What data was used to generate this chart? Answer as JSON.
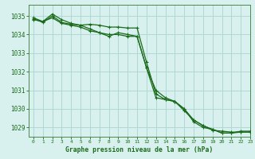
{
  "background_color": "#d8f0ee",
  "grid_color": "#b0d8d4",
  "line_color": "#1a6b1a",
  "marker_color": "#1a6b1a",
  "xlabel": "Graphe pression niveau de la mer (hPa)",
  "xlabel_color": "#1a6b1a",
  "tick_color": "#1a6b1a",
  "spine_color": "#4a8a4a",
  "ylim": [
    1028.5,
    1035.6
  ],
  "xlim": [
    -0.5,
    23
  ],
  "yticks": [
    1029,
    1030,
    1031,
    1032,
    1033,
    1034,
    1035
  ],
  "xticks": [
    0,
    1,
    2,
    3,
    4,
    5,
    6,
    7,
    8,
    9,
    10,
    11,
    12,
    13,
    14,
    15,
    16,
    17,
    18,
    19,
    20,
    21,
    22,
    23
  ],
  "series1": [
    1034.8,
    1034.7,
    1035.1,
    1034.8,
    1034.6,
    1034.5,
    1034.3,
    1034.1,
    1033.9,
    1034.1,
    1034.0,
    1033.9,
    1032.2,
    1030.6,
    1030.5,
    1030.4,
    1030.0,
    1029.3,
    1029.0,
    1028.9,
    1028.7,
    1028.7,
    1028.8,
    1028.8
  ],
  "series2": [
    1034.9,
    1034.7,
    1034.9,
    1034.6,
    1034.5,
    1034.4,
    1034.2,
    1034.1,
    1034.0,
    1034.0,
    1033.9,
    1033.9,
    1032.2,
    1031.0,
    1030.6,
    1030.4,
    1029.9,
    1029.4,
    1029.1,
    1028.9,
    1028.7,
    1028.7,
    1028.75,
    1028.75
  ],
  "series3": [
    1034.85,
    1034.65,
    1035.0,
    1034.65,
    1034.55,
    1034.5,
    1034.55,
    1034.5,
    1034.4,
    1034.4,
    1034.35,
    1034.35,
    1032.5,
    1030.8,
    1030.5,
    1030.4,
    1030.0,
    1029.4,
    1029.1,
    1028.85,
    1028.8,
    1028.75,
    1028.75,
    1028.75
  ],
  "ytick_fontsize": 5.5,
  "xtick_fontsize": 4.5,
  "xlabel_fontsize": 5.8
}
